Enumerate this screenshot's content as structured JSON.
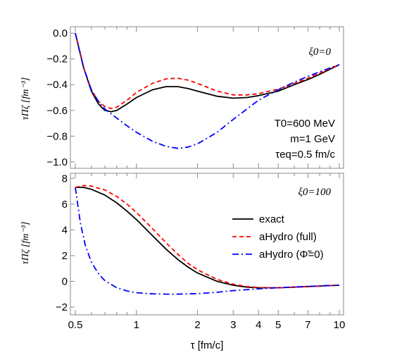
{
  "chart_data": [
    {
      "type": "line",
      "panel": "top",
      "x_scale": "log",
      "xlim": [
        0.5,
        10
      ],
      "ylim": [
        -1.05,
        0.05
      ],
      "yticks": [
        0.0,
        -0.2,
        -0.4,
        -0.6,
        -0.8,
        -1.0
      ],
      "ytick_labels": [
        "0.0",
        "−0.2",
        "−0.4",
        "−0.6",
        "−0.8",
        "−1.0"
      ],
      "ylabel": "τΠζ [fm⁻³]",
      "annotation": "ξ0=0",
      "params_text": [
        "T0=600 MeV",
        "m=1 GeV",
        "τeq=0.5 fm/c"
      ],
      "series": [
        {
          "name": "exact",
          "color": "#000000",
          "dash": "solid",
          "points": [
            [
              0.5,
              0.0
            ],
            [
              0.55,
              -0.27
            ],
            [
              0.6,
              -0.45
            ],
            [
              0.65,
              -0.55
            ],
            [
              0.7,
              -0.6
            ],
            [
              0.75,
              -0.61
            ],
            [
              0.8,
              -0.6
            ],
            [
              0.9,
              -0.55
            ],
            [
              1.0,
              -0.5
            ],
            [
              1.2,
              -0.44
            ],
            [
              1.4,
              -0.415
            ],
            [
              1.6,
              -0.415
            ],
            [
              1.8,
              -0.43
            ],
            [
              2.0,
              -0.45
            ],
            [
              2.5,
              -0.49
            ],
            [
              3.0,
              -0.505
            ],
            [
              3.5,
              -0.5
            ],
            [
              4.0,
              -0.485
            ],
            [
              5.0,
              -0.45
            ],
            [
              6.0,
              -0.4
            ],
            [
              7.0,
              -0.36
            ],
            [
              8.0,
              -0.32
            ],
            [
              9.0,
              -0.28
            ],
            [
              10.0,
              -0.245
            ]
          ]
        },
        {
          "name": "aHydro (full)",
          "color": "#ff0000",
          "dash": "dashed",
          "points": [
            [
              0.5,
              0.0
            ],
            [
              0.55,
              -0.27
            ],
            [
              0.6,
              -0.44
            ],
            [
              0.65,
              -0.53
            ],
            [
              0.7,
              -0.57
            ],
            [
              0.75,
              -0.585
            ],
            [
              0.8,
              -0.575
            ],
            [
              0.9,
              -0.52
            ],
            [
              1.0,
              -0.46
            ],
            [
              1.2,
              -0.39
            ],
            [
              1.4,
              -0.355
            ],
            [
              1.6,
              -0.35
            ],
            [
              1.8,
              -0.365
            ],
            [
              2.0,
              -0.39
            ],
            [
              2.5,
              -0.45
            ],
            [
              3.0,
              -0.48
            ],
            [
              3.5,
              -0.48
            ],
            [
              4.0,
              -0.47
            ],
            [
              5.0,
              -0.435
            ],
            [
              6.0,
              -0.39
            ],
            [
              7.0,
              -0.35
            ],
            [
              8.0,
              -0.31
            ],
            [
              9.0,
              -0.275
            ],
            [
              10.0,
              -0.245
            ]
          ]
        },
        {
          "name": "aHydro (Φ̃=0)",
          "color": "#0000ff",
          "dash": "dashdot",
          "points": [
            [
              0.5,
              0.0
            ],
            [
              0.55,
              -0.27
            ],
            [
              0.6,
              -0.44
            ],
            [
              0.65,
              -0.53
            ],
            [
              0.7,
              -0.59
            ],
            [
              0.8,
              -0.66
            ],
            [
              0.9,
              -0.72
            ],
            [
              1.0,
              -0.77
            ],
            [
              1.2,
              -0.84
            ],
            [
              1.4,
              -0.88
            ],
            [
              1.6,
              -0.895
            ],
            [
              1.8,
              -0.885
            ],
            [
              2.0,
              -0.86
            ],
            [
              2.5,
              -0.77
            ],
            [
              3.0,
              -0.67
            ],
            [
              3.5,
              -0.59
            ],
            [
              4.0,
              -0.52
            ],
            [
              5.0,
              -0.44
            ],
            [
              6.0,
              -0.38
            ],
            [
              7.0,
              -0.335
            ],
            [
              8.0,
              -0.3
            ],
            [
              9.0,
              -0.27
            ],
            [
              10.0,
              -0.245
            ]
          ]
        }
      ]
    },
    {
      "type": "line",
      "panel": "bottom",
      "x_scale": "log",
      "xlim": [
        0.5,
        10
      ],
      "ylim": [
        -2.6,
        8.4
      ],
      "yticks": [
        8,
        6,
        4,
        2,
        0,
        -2
      ],
      "ytick_labels": [
        "8",
        "6",
        "4",
        "2",
        "0",
        "−2"
      ],
      "xticks": [
        0.5,
        1,
        2,
        3,
        4,
        5,
        7,
        10
      ],
      "xtick_labels": [
        "0.5",
        "1",
        "2",
        "3",
        "4",
        "5",
        "7",
        "10"
      ],
      "xlabel": "τ [fm/c]",
      "ylabel": "τΠζ [fm⁻³]",
      "annotation": "ξ0=100",
      "legend_position": "right",
      "series": [
        {
          "name": "exact",
          "color": "#000000",
          "dash": "solid",
          "points": [
            [
              0.5,
              7.3
            ],
            [
              0.55,
              7.3
            ],
            [
              0.6,
              7.15
            ],
            [
              0.7,
              6.7
            ],
            [
              0.8,
              6.1
            ],
            [
              0.9,
              5.45
            ],
            [
              1.0,
              4.8
            ],
            [
              1.2,
              3.55
            ],
            [
              1.4,
              2.5
            ],
            [
              1.6,
              1.7
            ],
            [
              1.8,
              1.1
            ],
            [
              2.0,
              0.65
            ],
            [
              2.5,
              0.0
            ],
            [
              3.0,
              -0.3
            ],
            [
              3.5,
              -0.45
            ],
            [
              4.0,
              -0.5
            ],
            [
              5.0,
              -0.5
            ],
            [
              6.0,
              -0.45
            ],
            [
              7.0,
              -0.4
            ],
            [
              8.0,
              -0.36
            ],
            [
              9.0,
              -0.33
            ],
            [
              10.0,
              -0.3
            ]
          ]
        },
        {
          "name": "aHydro (full)",
          "color": "#ff0000",
          "dash": "dashed",
          "points": [
            [
              0.5,
              7.3
            ],
            [
              0.55,
              7.45
            ],
            [
              0.6,
              7.4
            ],
            [
              0.7,
              7.1
            ],
            [
              0.8,
              6.6
            ],
            [
              0.9,
              6.0
            ],
            [
              1.0,
              5.35
            ],
            [
              1.2,
              4.1
            ],
            [
              1.4,
              3.0
            ],
            [
              1.6,
              2.1
            ],
            [
              1.8,
              1.4
            ],
            [
              2.0,
              0.9
            ],
            [
              2.5,
              0.15
            ],
            [
              3.0,
              -0.22
            ],
            [
              3.5,
              -0.4
            ],
            [
              4.0,
              -0.48
            ],
            [
              5.0,
              -0.5
            ],
            [
              6.0,
              -0.46
            ],
            [
              7.0,
              -0.41
            ],
            [
              8.0,
              -0.37
            ],
            [
              9.0,
              -0.33
            ],
            [
              10.0,
              -0.3
            ]
          ]
        },
        {
          "name": "aHydro (Φ̃=0)",
          "color": "#0000ff",
          "dash": "dashdot",
          "points": [
            [
              0.5,
              7.3
            ],
            [
              0.53,
              4.5
            ],
            [
              0.56,
              2.8
            ],
            [
              0.6,
              1.5
            ],
            [
              0.65,
              0.6
            ],
            [
              0.7,
              0.05
            ],
            [
              0.8,
              -0.5
            ],
            [
              0.9,
              -0.75
            ],
            [
              1.0,
              -0.88
            ],
            [
              1.2,
              -0.97
            ],
            [
              1.5,
              -1.0
            ],
            [
              2.0,
              -0.95
            ],
            [
              2.5,
              -0.85
            ],
            [
              3.0,
              -0.72
            ],
            [
              4.0,
              -0.58
            ],
            [
              5.0,
              -0.5
            ],
            [
              6.0,
              -0.44
            ],
            [
              7.0,
              -0.39
            ],
            [
              8.0,
              -0.35
            ],
            [
              9.0,
              -0.32
            ],
            [
              10.0,
              -0.3
            ]
          ]
        }
      ]
    }
  ]
}
